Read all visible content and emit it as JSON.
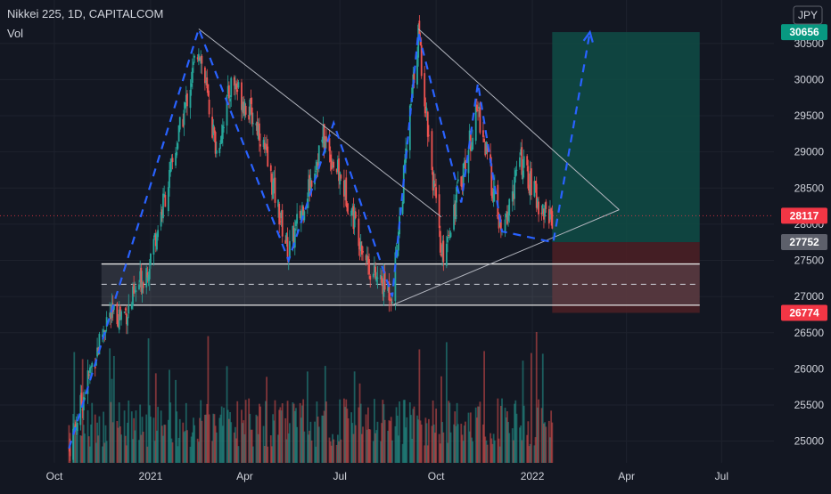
{
  "header": {
    "symbol": "Nikkei 225, 1D, CAPITALCOM",
    "indicator": "Vol",
    "currency": "JPY"
  },
  "price_tags": [
    {
      "name": "target",
      "text": "30656",
      "value": 30656,
      "color": "#089981"
    },
    {
      "name": "last",
      "text": "28117",
      "value": 28117,
      "color": "#f23645"
    },
    {
      "name": "entry",
      "text": "27752",
      "value": 27752,
      "color": "#5d606b"
    },
    {
      "name": "stop",
      "text": "26774",
      "value": 26774,
      "color": "#f23645"
    }
  ],
  "colors": {
    "background": "#131722",
    "up": "#26a69a",
    "down": "#ef5350",
    "trend_line": "#b2b5be",
    "projection": "#2962ff",
    "profit_zone": "#0f4c45",
    "loss_zone": "#4a1f25"
  },
  "chart_data": {
    "type": "candlestick",
    "title": "Nikkei 225, 1D, CAPITALCOM",
    "x_tick_labels": [
      "Oct",
      "2021",
      "Apr",
      "Jul",
      "Oct",
      "2022",
      "Apr",
      "Jul"
    ],
    "x_ticks": [
      "2020-10-01",
      "2021-01-01",
      "2021-04-01",
      "2021-07-01",
      "2021-10-01",
      "2022-01-01",
      "2022-04-01",
      "2022-07-01"
    ],
    "x_range": [
      "2020-08-10",
      "2022-08-20"
    ],
    "y_tick_labels": [
      "25000",
      "25500",
      "26000",
      "26500",
      "27000",
      "27500",
      "28000",
      "28500",
      "29000",
      "29500",
      "30000",
      "30500"
    ],
    "ylim": [
      24700,
      31100
    ],
    "price_path": [
      {
        "date": "2020-10-15",
        "close": 24900
      },
      {
        "date": "2020-11-05",
        "close": 26000
      },
      {
        "date": "2020-11-20",
        "close": 26700
      },
      {
        "date": "2020-12-10",
        "close": 26800
      },
      {
        "date": "2020-12-30",
        "close": 27450
      },
      {
        "date": "2021-01-20",
        "close": 28700
      },
      {
        "date": "2021-02-16",
        "close": 30480
      },
      {
        "date": "2021-03-05",
        "close": 29000
      },
      {
        "date": "2021-03-20",
        "close": 30000
      },
      {
        "date": "2021-04-15",
        "close": 29300
      },
      {
        "date": "2021-05-13",
        "close": 27600
      },
      {
        "date": "2021-06-15",
        "close": 29200
      },
      {
        "date": "2021-07-05",
        "close": 28500
      },
      {
        "date": "2021-08-01",
        "close": 27300
      },
      {
        "date": "2021-08-20",
        "close": 27050
      },
      {
        "date": "2021-09-14",
        "close": 30650
      },
      {
        "date": "2021-10-06",
        "close": 27500
      },
      {
        "date": "2021-11-10",
        "close": 29600
      },
      {
        "date": "2021-12-03",
        "close": 27800
      },
      {
        "date": "2021-12-20",
        "close": 28900
      },
      {
        "date": "2022-01-10",
        "close": 28200
      },
      {
        "date": "2022-01-21",
        "close": 28117
      }
    ],
    "drawings": {
      "support_zone": {
        "upper": 27450,
        "lower": 26880,
        "mid": 27170
      },
      "descending_trendline_1": [
        {
          "date": "2021-02-16",
          "price": 30700
        },
        {
          "date": "2021-10-06",
          "price": 28100
        }
      ],
      "descending_trendline_2": [
        {
          "date": "2021-09-14",
          "price": 30700
        },
        {
          "date": "2022-03-25",
          "price": 28200
        }
      ],
      "ascending_trendline": [
        {
          "date": "2021-08-20",
          "price": 26880
        },
        {
          "date": "2022-03-25",
          "price": 28200
        }
      ],
      "projection_path": [
        {
          "date": "2020-10-15",
          "price": 24900
        },
        {
          "date": "2021-02-16",
          "price": 30700
        },
        {
          "date": "2021-05-13",
          "price": 27500
        },
        {
          "date": "2021-06-25",
          "price": 29400
        },
        {
          "date": "2021-08-20",
          "price": 27000
        },
        {
          "date": "2021-09-14",
          "price": 30650
        },
        {
          "date": "2021-10-25",
          "price": 28300
        },
        {
          "date": "2021-11-10",
          "price": 29950
        },
        {
          "date": "2021-12-03",
          "price": 27900
        },
        {
          "date": "2022-01-21",
          "price": 27750
        },
        {
          "date": "2022-02-25",
          "price": 30656
        }
      ],
      "long_position": {
        "start": "2022-01-20",
        "end": "2022-06-10",
        "entry": 27752,
        "target": 30656,
        "stop": 26774
      }
    }
  }
}
